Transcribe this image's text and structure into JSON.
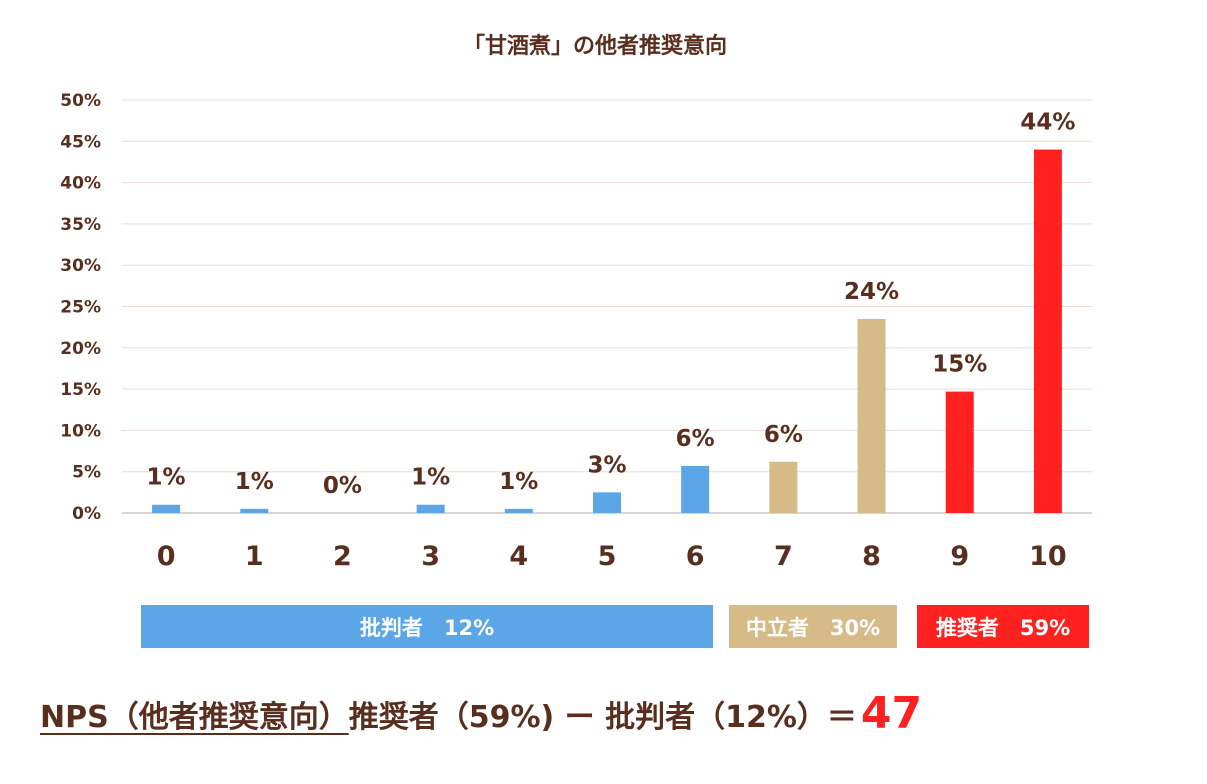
{
  "chart_data": {
    "type": "bar",
    "title": "「甘酒煮」の他者推奨意向",
    "categories": [
      "0",
      "1",
      "2",
      "3",
      "4",
      "5",
      "6",
      "7",
      "8",
      "9",
      "10"
    ],
    "values": [
      1,
      0.5,
      0,
      1,
      0.5,
      2.5,
      5.7,
      6.2,
      23.5,
      14.7,
      44
    ],
    "data_labels": [
      "1%",
      "1%",
      "0%",
      "1%",
      "1%",
      "3%",
      "6%",
      "6%",
      "24%",
      "15%",
      "44%"
    ],
    "yticks": [
      "0%",
      "5%",
      "10%",
      "15%",
      "20%",
      "25%",
      "30%",
      "35%",
      "40%",
      "45%",
      "50%"
    ],
    "ylim": [
      0,
      50
    ],
    "grid": true,
    "groups": [
      {
        "label": "批判者　12%",
        "from": 0,
        "to": 6,
        "color": "#5ba6e6"
      },
      {
        "label": "中立者　30%",
        "from": 7,
        "to": 8,
        "color": "#d6bb88"
      },
      {
        "label": "推奨者　59%",
        "from": 9,
        "to": 10,
        "color": "#ff2020"
      }
    ],
    "bar_colors": [
      "#5ba6e6",
      "#5ba6e6",
      "#5ba6e6",
      "#5ba6e6",
      "#5ba6e6",
      "#5ba6e6",
      "#5ba6e6",
      "#d6bb88",
      "#d6bb88",
      "#ff2020",
      "#ff2020"
    ]
  },
  "formula": {
    "underlined": "NPS（他者推奨意向）",
    "rest": "推奨者（59%) ー 批判者（12%）＝",
    "value": "47"
  }
}
